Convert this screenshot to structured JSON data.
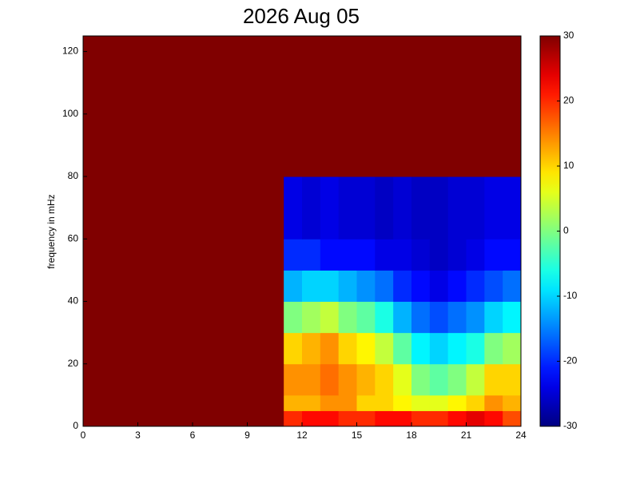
{
  "chart_data": {
    "type": "heatmap",
    "title": "2026 Aug 05",
    "ylabel": "frequency in mHz",
    "x_edges": [
      0,
      1,
      2,
      3,
      4,
      5,
      6,
      7,
      8,
      9,
      10,
      11,
      12,
      13,
      14,
      15,
      16,
      17,
      18,
      19,
      20,
      21,
      22,
      23,
      24
    ],
    "y_edges": [
      0,
      5,
      10,
      20,
      30,
      40,
      50,
      60,
      80,
      100,
      125
    ],
    "z": [
      [
        30,
        30,
        30,
        30,
        30,
        30,
        30,
        30,
        30,
        30,
        30,
        20,
        22,
        22,
        20,
        20,
        22,
        22,
        20,
        20,
        22,
        24,
        22,
        18
      ],
      [
        30,
        30,
        30,
        30,
        30,
        30,
        30,
        30,
        30,
        30,
        30,
        12,
        12,
        14,
        14,
        10,
        10,
        8,
        6,
        6,
        8,
        10,
        14,
        12
      ],
      [
        30,
        30,
        30,
        30,
        30,
        30,
        30,
        30,
        30,
        30,
        30,
        14,
        14,
        16,
        14,
        12,
        10,
        6,
        0,
        -2,
        0,
        4,
        10,
        10
      ],
      [
        30,
        30,
        30,
        30,
        30,
        30,
        30,
        30,
        30,
        30,
        30,
        10,
        12,
        14,
        10,
        8,
        4,
        -2,
        -8,
        -10,
        -8,
        -6,
        0,
        2
      ],
      [
        30,
        30,
        30,
        30,
        30,
        30,
        30,
        30,
        30,
        30,
        30,
        0,
        2,
        4,
        0,
        -2,
        -6,
        -12,
        -16,
        -18,
        -16,
        -14,
        -10,
        -8
      ],
      [
        30,
        30,
        30,
        30,
        30,
        30,
        30,
        30,
        30,
        30,
        30,
        -12,
        -10,
        -10,
        -12,
        -14,
        -16,
        -20,
        -22,
        -24,
        -22,
        -20,
        -18,
        -16
      ],
      [
        30,
        30,
        30,
        30,
        30,
        30,
        30,
        30,
        30,
        30,
        30,
        -20,
        -20,
        -22,
        -22,
        -22,
        -24,
        -24,
        -25,
        -26,
        -25,
        -24,
        -22,
        -22
      ],
      [
        30,
        30,
        30,
        30,
        30,
        30,
        30,
        30,
        30,
        30,
        30,
        -24,
        -25,
        -24,
        -25,
        -25,
        -26,
        -25,
        -26,
        -26,
        -25,
        -25,
        -24,
        -24
      ],
      [
        30,
        30,
        30,
        30,
        30,
        30,
        30,
        30,
        30,
        30,
        30,
        30,
        30,
        30,
        30,
        30,
        30,
        30,
        30,
        30,
        30,
        30,
        30,
        30
      ],
      [
        30,
        30,
        30,
        30,
        30,
        30,
        30,
        30,
        30,
        30,
        30,
        30,
        30,
        30,
        30,
        30,
        30,
        30,
        30,
        30,
        30,
        30,
        30,
        30
      ]
    ],
    "xlim": [
      0,
      24
    ],
    "xticks": [
      0,
      3,
      6,
      9,
      12,
      15,
      18,
      21,
      24
    ],
    "ylim": [
      0,
      125
    ],
    "yticks": [
      0,
      20,
      40,
      60,
      80,
      100,
      120
    ],
    "clim": [
      -30,
      30
    ],
    "cticks": [
      -30,
      -20,
      -10,
      0,
      10,
      20,
      30
    ],
    "colormap": "jet"
  }
}
